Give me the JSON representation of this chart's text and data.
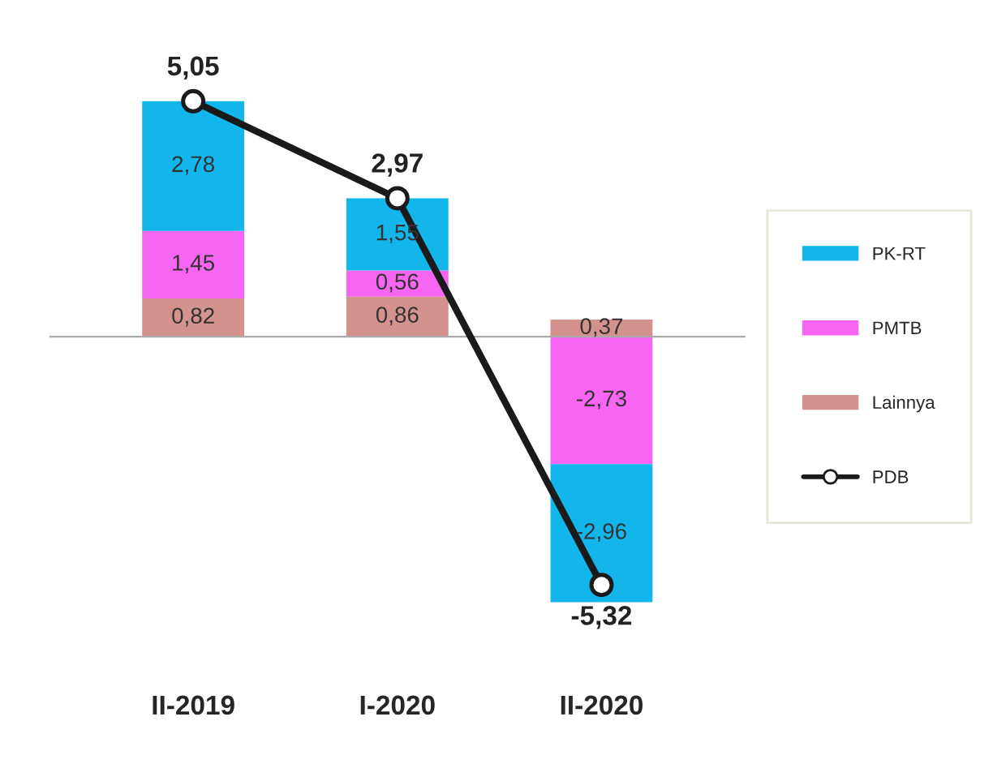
{
  "chart_data": {
    "type": "bar",
    "stacked": true,
    "categories": [
      "II-2019",
      "I-2020",
      "II-2020"
    ],
    "series": [
      {
        "name": "Lainnya",
        "color": "#d4928e",
        "values": [
          0.82,
          0.86,
          0.37
        ],
        "value_labels": [
          "0,82",
          "0,86",
          "0,37"
        ]
      },
      {
        "name": "PMTB",
        "color": "#f766f2",
        "values": [
          1.45,
          0.56,
          -2.73
        ],
        "value_labels": [
          "1,45",
          "0,56",
          "-2,73"
        ]
      },
      {
        "name": "PK-RT",
        "color": "#13b6ea",
        "values": [
          2.78,
          1.55,
          -2.96
        ],
        "value_labels": [
          "2,78",
          "1,55",
          "-2,96"
        ]
      },
      {
        "name": "PDB",
        "type": "line",
        "color": "#1a1a1a",
        "marker": "circle",
        "line_style": "solid",
        "values": [
          5.05,
          2.97,
          -5.32
        ],
        "value_labels": [
          "5,05",
          "2,97",
          "-5,32"
        ]
      }
    ],
    "legend": "right",
    "grid": false
  }
}
